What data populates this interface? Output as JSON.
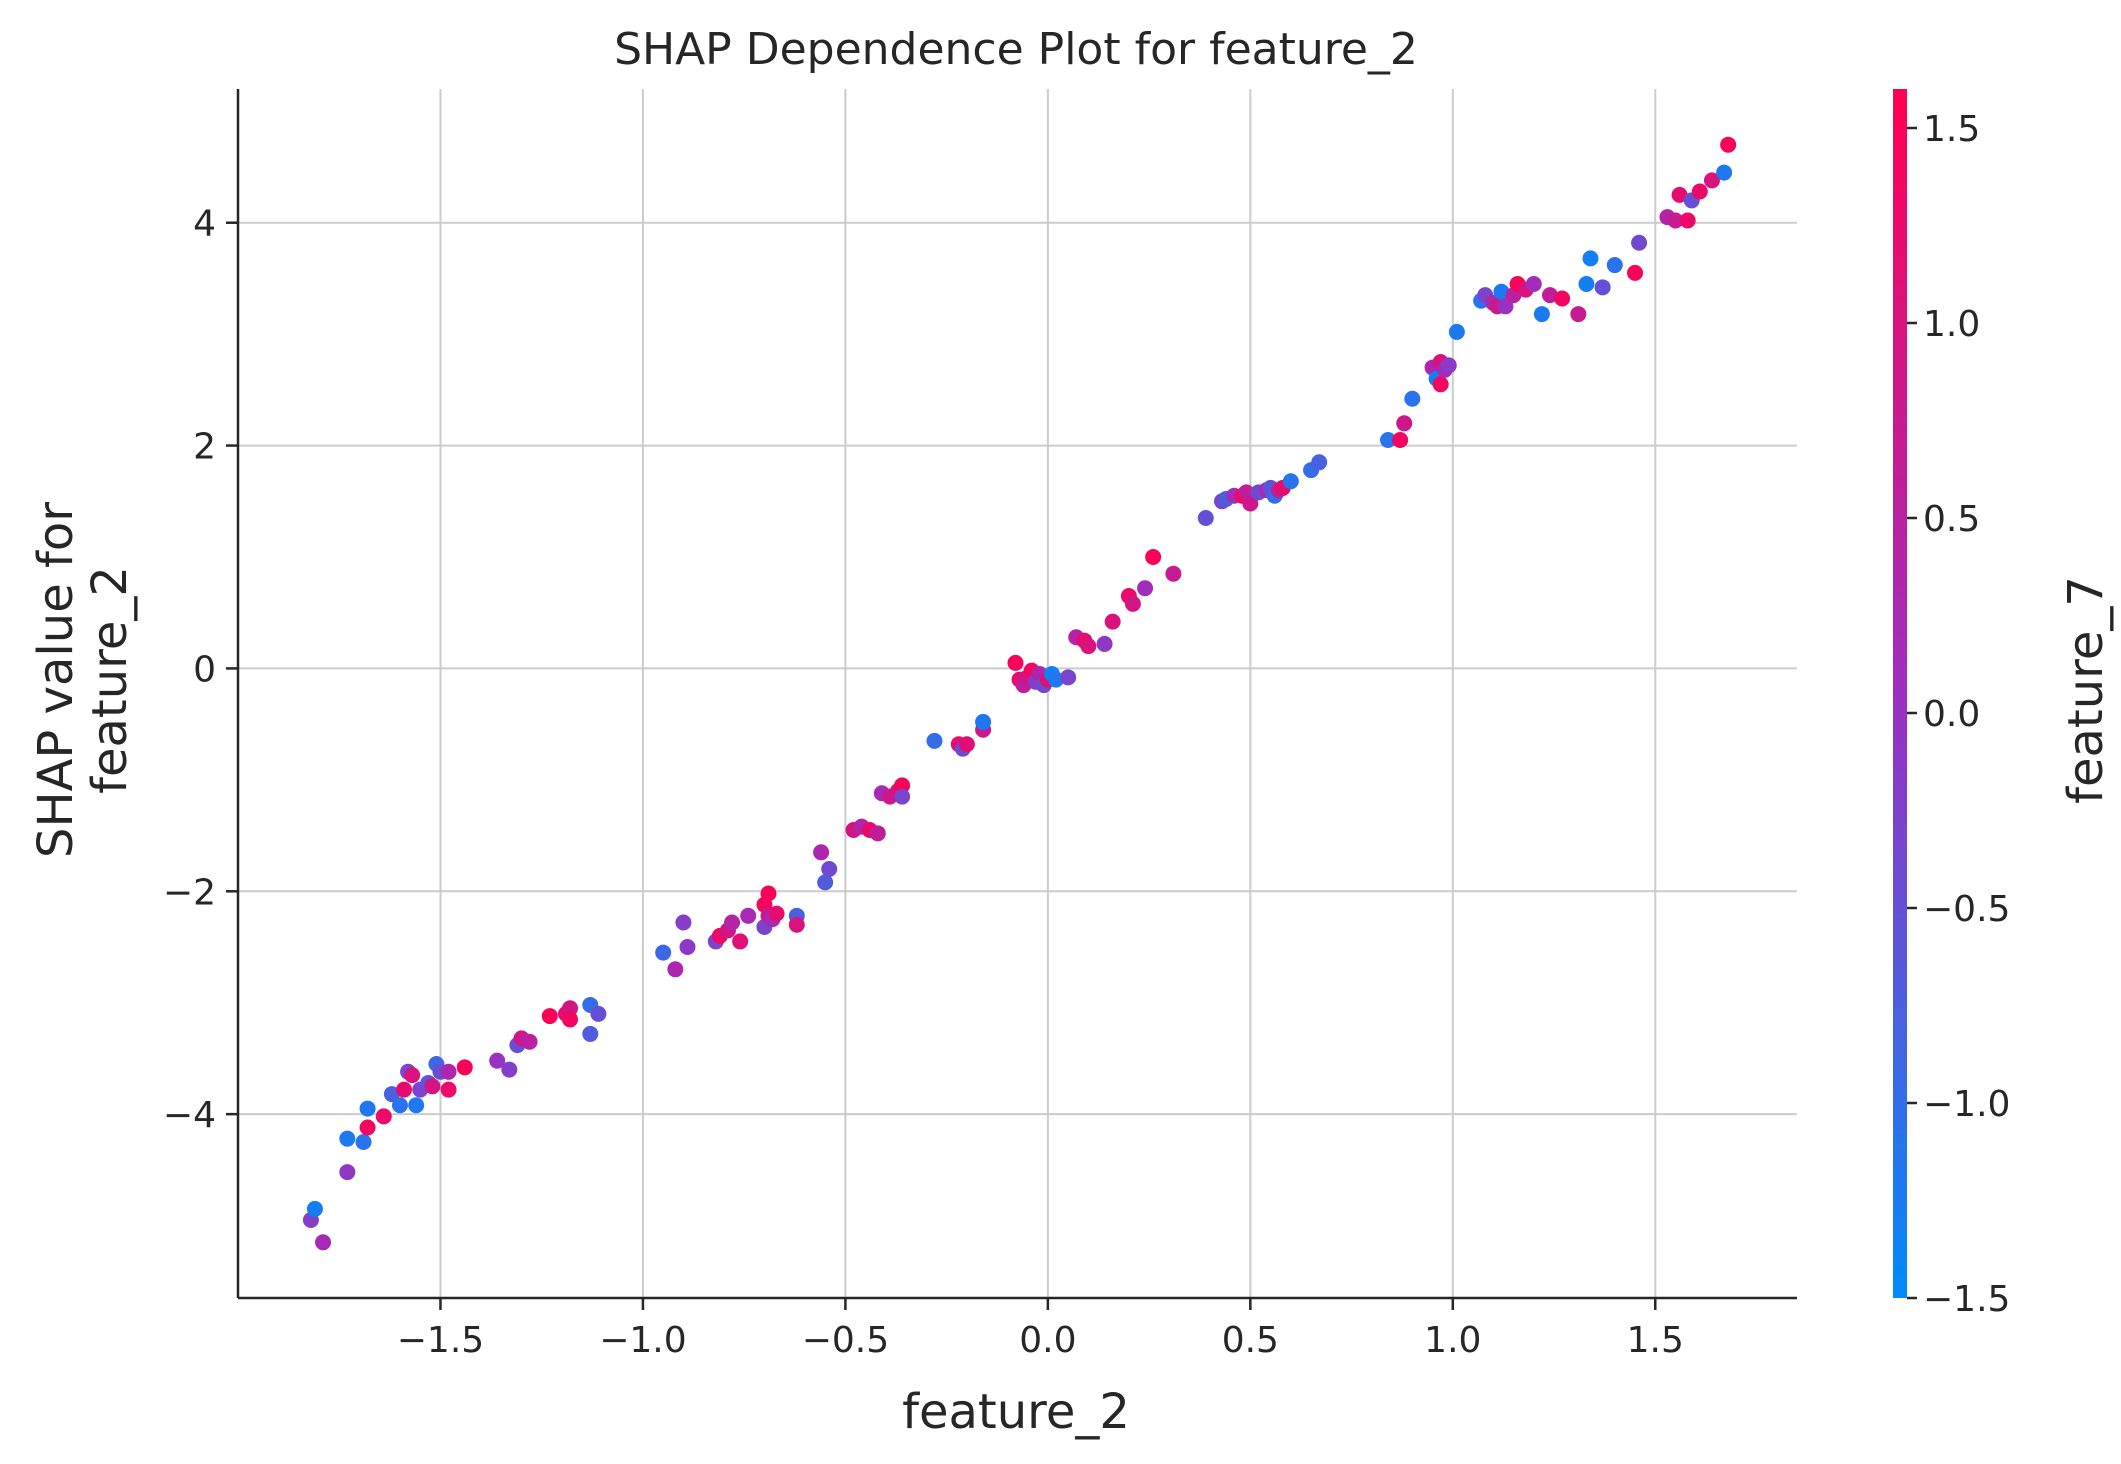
{
  "chart_data": {
    "type": "scatter",
    "title": "SHAP Dependence Plot for feature_2",
    "xlabel": "feature_2",
    "ylabel": [
      "SHAP value for",
      "feature_2"
    ],
    "xlim": [
      -2.0,
      1.85
    ],
    "ylim": [
      -5.65,
      5.2
    ],
    "x_ticks": [
      -1.5,
      -1.0,
      -0.5,
      0.0,
      0.5,
      1.0,
      1.5
    ],
    "x_tick_labels": [
      "−1.5",
      "−1.0",
      "−0.5",
      "0.0",
      "0.5",
      "1.0",
      "1.5"
    ],
    "y_ticks": [
      -4,
      -2,
      0,
      2,
      4
    ],
    "y_tick_labels": [
      "−4",
      "−2",
      "0",
      "2",
      "4"
    ],
    "grid": true,
    "colorbar": {
      "label": "feature_7",
      "range": [
        -1.5,
        1.6
      ],
      "ticks": [
        1.5,
        1.0,
        0.5,
        0.0,
        -0.5,
        -1.0,
        -1.5
      ],
      "tick_labels": [
        "1.5",
        "1.0",
        "0.5",
        "0.0",
        "−0.5",
        "−1.0",
        "−1.5"
      ],
      "color_low": "#008bfb",
      "color_mid": "#9d2fc0",
      "color_high": "#ff0052"
    },
    "points": [
      [
        -1.82,
        -4.95,
        -0.2
      ],
      [
        -1.81,
        -4.85,
        -1.3
      ],
      [
        -1.79,
        -5.15,
        0.2
      ],
      [
        -1.73,
        -4.22,
        -1.2
      ],
      [
        -1.73,
        -4.52,
        -0.1
      ],
      [
        -1.69,
        -4.25,
        -1.1
      ],
      [
        -1.68,
        -3.95,
        -1.2
      ],
      [
        -1.68,
        -4.12,
        1.4
      ],
      [
        -1.64,
        -4.02,
        1.3
      ],
      [
        -1.62,
        -3.82,
        -0.8
      ],
      [
        -1.6,
        -3.92,
        -1.1
      ],
      [
        -1.59,
        -3.78,
        1.2
      ],
      [
        -1.58,
        -3.62,
        -0.4
      ],
      [
        -1.57,
        -3.65,
        1.0
      ],
      [
        -1.56,
        -3.92,
        -1.2
      ],
      [
        -1.55,
        -3.78,
        -0.3
      ],
      [
        -1.53,
        -3.72,
        -0.6
      ],
      [
        -1.52,
        -3.75,
        0.9
      ],
      [
        -1.51,
        -3.55,
        -0.9
      ],
      [
        -1.5,
        -3.62,
        -0.5
      ],
      [
        -1.48,
        -3.62,
        0.3
      ],
      [
        -1.48,
        -3.78,
        1.3
      ],
      [
        -1.44,
        -3.58,
        1.5
      ],
      [
        -1.36,
        -3.52,
        0.0
      ],
      [
        -1.33,
        -3.6,
        -0.2
      ],
      [
        -1.31,
        -3.38,
        -0.5
      ],
      [
        -1.3,
        -3.32,
        0.8
      ],
      [
        -1.28,
        -3.35,
        0.5
      ],
      [
        -1.23,
        -3.12,
        1.5
      ],
      [
        -1.19,
        -3.1,
        1.2
      ],
      [
        -1.18,
        -3.05,
        0.9
      ],
      [
        -1.18,
        -3.15,
        1.4
      ],
      [
        -1.13,
        -3.02,
        -1.0
      ],
      [
        -1.13,
        -3.28,
        -0.7
      ],
      [
        -1.11,
        -3.1,
        -0.5
      ],
      [
        -0.95,
        -2.55,
        -0.9
      ],
      [
        -0.92,
        -2.7,
        0.3
      ],
      [
        -0.9,
        -2.28,
        -0.2
      ],
      [
        -0.89,
        -2.5,
        -0.1
      ],
      [
        -0.82,
        -2.45,
        -0.3
      ],
      [
        -0.81,
        -2.4,
        1.3
      ],
      [
        -0.79,
        -2.35,
        0.9
      ],
      [
        -0.78,
        -2.28,
        0.4
      ],
      [
        -0.76,
        -2.45,
        1.1
      ],
      [
        -0.74,
        -2.22,
        0.2
      ],
      [
        -0.7,
        -2.32,
        -0.3
      ],
      [
        -0.7,
        -2.12,
        1.4
      ],
      [
        -0.69,
        -2.22,
        0.7
      ],
      [
        -0.69,
        -2.02,
        1.5
      ],
      [
        -0.68,
        -2.25,
        0.2
      ],
      [
        -0.67,
        -2.2,
        1.2
      ],
      [
        -0.62,
        -2.22,
        -0.8
      ],
      [
        -0.62,
        -2.3,
        1.0
      ],
      [
        -0.56,
        -1.65,
        0.3
      ],
      [
        -0.55,
        -1.92,
        -0.7
      ],
      [
        -0.54,
        -1.8,
        -0.4
      ],
      [
        -0.48,
        -1.45,
        0.9
      ],
      [
        -0.46,
        -1.42,
        0.4
      ],
      [
        -0.44,
        -1.45,
        1.2
      ],
      [
        -0.42,
        -1.48,
        0.6
      ],
      [
        -0.41,
        -1.12,
        0.2
      ],
      [
        -0.39,
        -1.15,
        0.8
      ],
      [
        -0.37,
        -1.1,
        1.0
      ],
      [
        -0.36,
        -1.05,
        1.5
      ],
      [
        -0.36,
        -1.15,
        -0.3
      ],
      [
        -0.28,
        -0.65,
        -1.0
      ],
      [
        -0.22,
        -0.68,
        1.3
      ],
      [
        -0.21,
        -0.72,
        -0.4
      ],
      [
        -0.2,
        -0.68,
        1.1
      ],
      [
        -0.16,
        -0.55,
        0.8
      ],
      [
        -0.16,
        -0.48,
        -1.2
      ],
      [
        -0.08,
        0.05,
        1.5
      ],
      [
        -0.07,
        -0.1,
        1.2
      ],
      [
        -0.06,
        -0.15,
        0.6
      ],
      [
        -0.05,
        -0.08,
        0.9
      ],
      [
        -0.04,
        -0.02,
        1.4
      ],
      [
        -0.03,
        -0.12,
        -0.2
      ],
      [
        -0.02,
        -0.05,
        0.3
      ],
      [
        -0.01,
        -0.15,
        -0.4
      ],
      [
        0.0,
        -0.1,
        1.1
      ],
      [
        0.01,
        -0.05,
        -1.3
      ],
      [
        0.02,
        -0.1,
        -1.2
      ],
      [
        0.05,
        -0.08,
        -0.3
      ],
      [
        0.07,
        0.28,
        0.4
      ],
      [
        0.09,
        0.25,
        1.2
      ],
      [
        0.1,
        0.2,
        1.0
      ],
      [
        0.14,
        0.22,
        -0.1
      ],
      [
        0.16,
        0.42,
        1.0
      ],
      [
        0.2,
        0.65,
        1.3
      ],
      [
        0.21,
        0.58,
        0.9
      ],
      [
        0.24,
        0.72,
        0.1
      ],
      [
        0.26,
        1.0,
        1.5
      ],
      [
        0.31,
        0.85,
        0.7
      ],
      [
        0.39,
        1.35,
        -0.5
      ],
      [
        0.43,
        1.5,
        -0.3
      ],
      [
        0.44,
        1.52,
        -0.7
      ],
      [
        0.46,
        1.55,
        0.1
      ],
      [
        0.48,
        1.55,
        1.4
      ],
      [
        0.49,
        1.58,
        0.6
      ],
      [
        0.5,
        1.48,
        0.8
      ],
      [
        0.52,
        1.58,
        -0.4
      ],
      [
        0.54,
        1.6,
        0.2
      ],
      [
        0.55,
        1.62,
        -0.6
      ],
      [
        0.56,
        1.55,
        -1.0
      ],
      [
        0.57,
        1.6,
        0.5
      ],
      [
        0.58,
        1.62,
        1.2
      ],
      [
        0.6,
        1.68,
        -1.1
      ],
      [
        0.65,
        1.78,
        -1.0
      ],
      [
        0.67,
        1.85,
        -0.8
      ],
      [
        0.84,
        2.05,
        -1.1
      ],
      [
        0.87,
        2.05,
        1.4
      ],
      [
        0.88,
        2.2,
        0.8
      ],
      [
        0.9,
        2.42,
        -1.1
      ],
      [
        0.95,
        2.7,
        0.3
      ],
      [
        0.96,
        2.6,
        -1.3
      ],
      [
        0.97,
        2.75,
        1.0
      ],
      [
        0.97,
        2.55,
        1.4
      ],
      [
        0.98,
        2.68,
        0.2
      ],
      [
        0.99,
        2.72,
        -0.1
      ],
      [
        1.01,
        3.02,
        -1.2
      ],
      [
        1.07,
        3.3,
        -1.1
      ],
      [
        1.08,
        3.35,
        -0.3
      ],
      [
        1.1,
        3.28,
        0.3
      ],
      [
        1.11,
        3.25,
        0.8
      ],
      [
        1.12,
        3.38,
        -1.2
      ],
      [
        1.13,
        3.25,
        0.0
      ],
      [
        1.15,
        3.35,
        0.5
      ],
      [
        1.16,
        3.45,
        1.5
      ],
      [
        1.18,
        3.4,
        1.0
      ],
      [
        1.2,
        3.45,
        0.1
      ],
      [
        1.22,
        3.18,
        -1.2
      ],
      [
        1.24,
        3.35,
        0.6
      ],
      [
        1.27,
        3.32,
        1.4
      ],
      [
        1.31,
        3.18,
        0.7
      ],
      [
        1.33,
        3.45,
        -1.3
      ],
      [
        1.34,
        3.68,
        -1.3
      ],
      [
        1.37,
        3.42,
        -0.5
      ],
      [
        1.4,
        3.62,
        -1.1
      ],
      [
        1.45,
        3.55,
        1.5
      ],
      [
        1.46,
        3.82,
        -0.4
      ],
      [
        1.53,
        4.05,
        0.4
      ],
      [
        1.55,
        4.02,
        0.7
      ],
      [
        1.56,
        4.25,
        1.2
      ],
      [
        1.58,
        4.02,
        1.3
      ],
      [
        1.59,
        4.2,
        -0.5
      ],
      [
        1.61,
        4.28,
        1.3
      ],
      [
        1.64,
        4.38,
        1.0
      ],
      [
        1.67,
        4.45,
        -1.2
      ],
      [
        1.68,
        4.7,
        1.5
      ]
    ]
  }
}
